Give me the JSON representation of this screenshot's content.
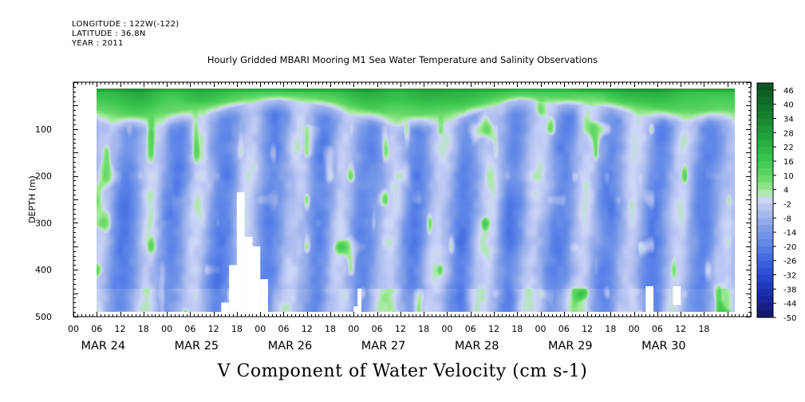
{
  "header": {
    "longitude": "LONGITUDE : 122W(-122)",
    "latitude": "LATITUDE : 36.8N",
    "year": "YEAR : 2011",
    "subtitle": "Hourly Gridded MBARI Mooring M1 Sea Water Temperature and Salinity Observations"
  },
  "chart_data": {
    "type": "heatmap",
    "title": "V Component of Water Velocity (cm s-1)",
    "ylabel": "DEPTH (m)",
    "xlabel": "",
    "y_reversed": true,
    "ylim": [
      0,
      500
    ],
    "y_ticks": [
      100,
      200,
      300,
      400,
      500
    ],
    "data_depth_range": [
      14,
      490
    ],
    "time_range_hours": [
      0,
      174
    ],
    "data_time_start_hour": 6,
    "data_time_end_hour": 170,
    "hour_tick_labels": [
      "00",
      "06",
      "12",
      "18",
      "00",
      "06",
      "12",
      "18",
      "00",
      "06",
      "12",
      "18",
      "00",
      "06",
      "12",
      "18",
      "00",
      "06",
      "12",
      "18",
      "00",
      "06",
      "12",
      "18",
      "00",
      "06",
      "12",
      "18"
    ],
    "day_labels": [
      "MAR 24",
      "MAR 25",
      "MAR 26",
      "MAR 27",
      "MAR 28",
      "MAR 29",
      "MAR 30"
    ],
    "colorbar": {
      "labels": [
        "46",
        "40",
        "34",
        "28",
        "22",
        "16",
        "10",
        "4",
        "-2",
        "-8",
        "-14",
        "-20",
        "-26",
        "-32",
        "-38",
        "-44",
        "-50"
      ],
      "min": -50,
      "max": 49,
      "step": 3
    },
    "description_values": {
      "surface_layer_0_100m": "mostly positive (green), 10 to 30 cm/s",
      "deep_layer_150_490m": "mostly negative (blue), -5 to -25 cm/s"
    },
    "missing_data_patches": [
      {
        "hours": [
          42,
          44
        ],
        "depth": [
          235,
          490
        ]
      },
      {
        "hours": [
          44,
          46
        ],
        "depth": [
          330,
          490
        ]
      },
      {
        "hours": [
          46,
          48
        ],
        "depth": [
          350,
          490
        ]
      },
      {
        "hours": [
          40,
          42
        ],
        "depth": [
          390,
          490
        ]
      },
      {
        "hours": [
          38,
          40
        ],
        "depth": [
          470,
          490
        ]
      },
      {
        "hours": [
          48,
          50
        ],
        "depth": [
          420,
          490
        ]
      },
      {
        "hours": [
          72,
          73
        ],
        "depth": [
          478,
          490
        ]
      },
      {
        "hours": [
          73,
          74
        ],
        "depth": [
          440,
          490
        ]
      },
      {
        "hours": [
          154,
          156
        ],
        "depth": [
          435,
          475
        ]
      },
      {
        "hours": [
          147,
          149
        ],
        "depth": [
          435,
          490
        ]
      }
    ]
  }
}
